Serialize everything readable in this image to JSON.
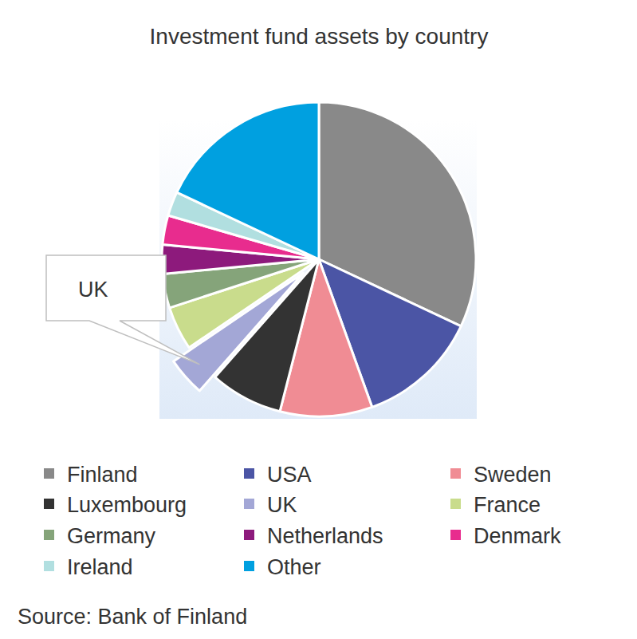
{
  "chart_data": {
    "type": "pie",
    "title": "Investment fund assets by country",
    "categories": [
      "Finland",
      "USA",
      "Sweden",
      "Luxembourg",
      "UK",
      "France",
      "Germany",
      "Netherlands",
      "Denmark",
      "Ireland",
      "Other"
    ],
    "values": [
      32,
      12.5,
      9.5,
      7.5,
      4,
      4.5,
      3.5,
      3,
      3,
      2.5,
      18
    ],
    "colors": [
      "#898989",
      "#4b55a5",
      "#f08c94",
      "#333333",
      "#a3a7d6",
      "#c9dc8c",
      "#85a47a",
      "#8d1a7c",
      "#e82c8e",
      "#b1dfe0",
      "#00a0e0"
    ],
    "annotation": "UK",
    "source": "Source: Bank of Finland",
    "legend": "bottom"
  }
}
